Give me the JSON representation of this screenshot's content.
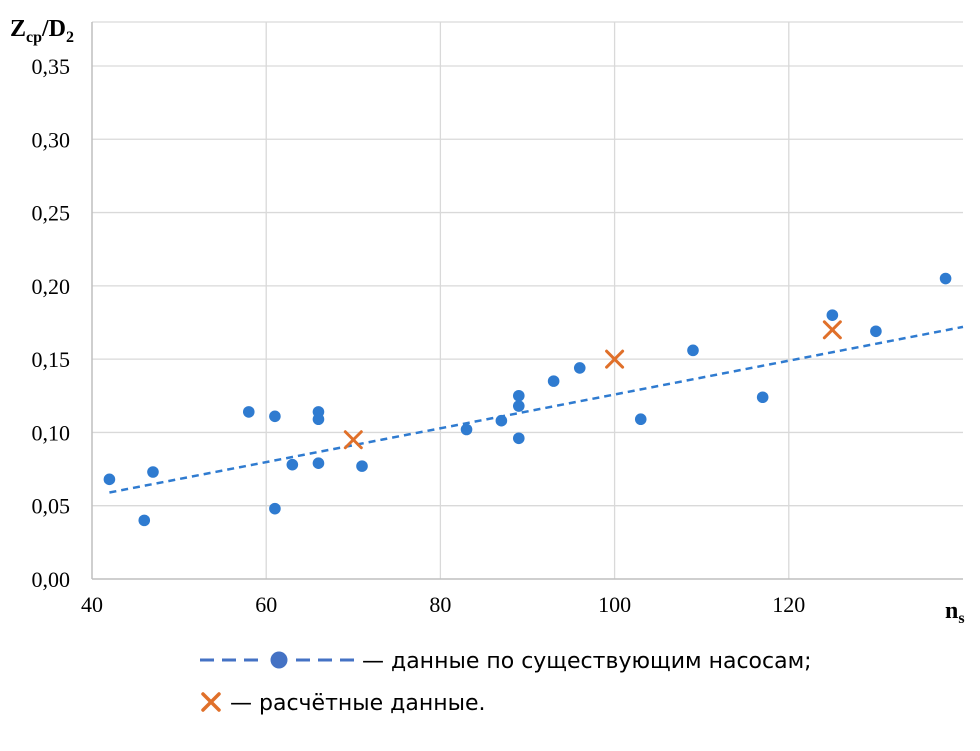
{
  "chart_data": {
    "type": "scatter",
    "ylabel": {
      "main": "Z",
      "sub": "ср",
      "sep": "/D",
      "sub2": "2"
    },
    "xlabel": {
      "main": "n",
      "sub": "s"
    },
    "xlim": [
      40,
      140
    ],
    "ylim": [
      0,
      0.38
    ],
    "x_ticks": [
      40,
      60,
      80,
      100,
      120
    ],
    "y_ticks": [
      0.0,
      0.05,
      0.1,
      0.15,
      0.2,
      0.25,
      0.3,
      0.35
    ],
    "y_tick_labels": [
      "0,00",
      "0,05",
      "0,10",
      "0,15",
      "0,20",
      "0,25",
      "0,30",
      "0,35"
    ],
    "grid": true,
    "legend_position": "bottom",
    "series": [
      {
        "name": "— данные по существующим насосам;",
        "marker": "circle",
        "color": "#2F7BD0",
        "points": [
          [
            42,
            0.068
          ],
          [
            46,
            0.04
          ],
          [
            47,
            0.073
          ],
          [
            58,
            0.114
          ],
          [
            61,
            0.111
          ],
          [
            61,
            0.048
          ],
          [
            63,
            0.078
          ],
          [
            66,
            0.114
          ],
          [
            66,
            0.109
          ],
          [
            66,
            0.079
          ],
          [
            71,
            0.077
          ],
          [
            83,
            0.102
          ],
          [
            87,
            0.108
          ],
          [
            89,
            0.125
          ],
          [
            89,
            0.118
          ],
          [
            89,
            0.096
          ],
          [
            93,
            0.135
          ],
          [
            96,
            0.144
          ],
          [
            103,
            0.109
          ],
          [
            109,
            0.156
          ],
          [
            117,
            0.124
          ],
          [
            125,
            0.18
          ],
          [
            130,
            0.169
          ],
          [
            138,
            0.205
          ]
        ]
      },
      {
        "name": "— расчётные данные.",
        "marker": "x",
        "color": "#E0702A",
        "points": [
          [
            70,
            0.095
          ],
          [
            100,
            0.15
          ],
          [
            125,
            0.17
          ]
        ]
      }
    ],
    "trendline": {
      "type": "linear",
      "color": "#2F7BD0",
      "style": "dashed",
      "from": [
        42,
        0.059
      ],
      "to": [
        140,
        0.172
      ]
    }
  }
}
